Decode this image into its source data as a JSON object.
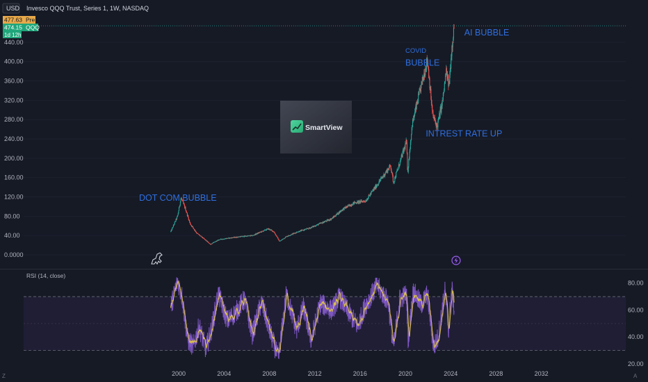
{
  "header": {
    "currency": "USD",
    "title": "Invesco QQQ Trust, Series 1, 1W, NASDAQ",
    "price_pre": "477.63",
    "pre_label": "Pre",
    "price_last": "474.15",
    "ticker": "QQQ",
    "countdown": "1d 12h"
  },
  "watermark": {
    "label": "SmartView"
  },
  "indicator": {
    "label": "RSI (14, close)"
  },
  "footer": {
    "left_icon_glyph": "Z",
    "right_icon_glyph": "A"
  },
  "colors": {
    "background": "#161a25",
    "up": "#26a69a",
    "down": "#ef5350",
    "rsi_line": "#7e57c2",
    "rsi_ma": "#d9c04a",
    "annotation": "#2f6fe0",
    "rsi_band": "#2a2344"
  },
  "chart_data": [
    {
      "type": "candlestick",
      "interval": "1W",
      "symbol": "QQQ",
      "ylim": [
        0,
        470
      ],
      "yticks": [
        "0.0000",
        "40.00",
        "80.00",
        "120.00",
        "160.00",
        "200.00",
        "240.00",
        "280.00",
        "320.00",
        "360.00",
        "400.00",
        "440.00"
      ],
      "xticks": [
        "2000",
        "2004",
        "2008",
        "2012",
        "2016",
        "2020",
        "2024",
        "2028",
        "2032"
      ],
      "series_points": [
        {
          "year": 1999.3,
          "close": 48
        },
        {
          "year": 1999.9,
          "close": 80
        },
        {
          "year": 2000.2,
          "close": 118
        },
        {
          "year": 2000.6,
          "close": 95
        },
        {
          "year": 2001.0,
          "close": 65
        },
        {
          "year": 2001.6,
          "close": 45
        },
        {
          "year": 2002.4,
          "close": 30
        },
        {
          "year": 2002.8,
          "close": 22
        },
        {
          "year": 2003.6,
          "close": 32
        },
        {
          "year": 2004.5,
          "close": 35
        },
        {
          "year": 2005.5,
          "close": 38
        },
        {
          "year": 2006.5,
          "close": 40
        },
        {
          "year": 2007.9,
          "close": 54
        },
        {
          "year": 2008.4,
          "close": 48
        },
        {
          "year": 2008.9,
          "close": 28
        },
        {
          "year": 2009.5,
          "close": 38
        },
        {
          "year": 2010.5,
          "close": 48
        },
        {
          "year": 2011.5,
          "close": 55
        },
        {
          "year": 2012.5,
          "close": 65
        },
        {
          "year": 2013.5,
          "close": 75
        },
        {
          "year": 2014.5,
          "close": 95
        },
        {
          "year": 2015.5,
          "close": 108
        },
        {
          "year": 2016.5,
          "close": 112
        },
        {
          "year": 2017.5,
          "close": 145
        },
        {
          "year": 2018.7,
          "close": 185
        },
        {
          "year": 2018.95,
          "close": 150
        },
        {
          "year": 2019.5,
          "close": 190
        },
        {
          "year": 2020.1,
          "close": 235
        },
        {
          "year": 2020.2,
          "close": 170
        },
        {
          "year": 2020.6,
          "close": 270
        },
        {
          "year": 2021.2,
          "close": 330
        },
        {
          "year": 2021.95,
          "close": 405
        },
        {
          "year": 2022.4,
          "close": 290
        },
        {
          "year": 2022.8,
          "close": 265
        },
        {
          "year": 2023.3,
          "close": 320
        },
        {
          "year": 2023.6,
          "close": 380
        },
        {
          "year": 2023.85,
          "close": 350
        },
        {
          "year": 2024.1,
          "close": 430
        },
        {
          "year": 2024.3,
          "close": 474.15
        }
      ],
      "annotations": [
        {
          "text": "DOT COM BUBBLE",
          "year": 1996.5,
          "value": 112
        },
        {
          "text": "COVID",
          "year": 2020.0,
          "value": 418,
          "size": "small"
        },
        {
          "text": "BUBBLE",
          "year": 2020.0,
          "value": 392
        },
        {
          "text": "INTREST RATE UP",
          "year": 2021.8,
          "value": 245
        },
        {
          "text": "AI BUBBLE",
          "year": 2025.2,
          "value": 454
        }
      ]
    },
    {
      "type": "line",
      "title": "RSI (14, close)",
      "ylim": [
        20,
        85
      ],
      "yticks": [
        "20.00",
        "40.00",
        "60.00",
        "80.00"
      ],
      "bands": [
        30,
        70
      ],
      "series_points": [
        {
          "year": 1999.3,
          "rsi": 62
        },
        {
          "year": 1999.9,
          "rsi": 82
        },
        {
          "year": 2000.3,
          "rsi": 70
        },
        {
          "year": 2000.8,
          "rsi": 38
        },
        {
          "year": 2001.3,
          "rsi": 33
        },
        {
          "year": 2001.8,
          "rsi": 48
        },
        {
          "year": 2002.4,
          "rsi": 31
        },
        {
          "year": 2002.9,
          "rsi": 46
        },
        {
          "year": 2003.5,
          "rsi": 72
        },
        {
          "year": 2004.3,
          "rsi": 52
        },
        {
          "year": 2005.0,
          "rsi": 58
        },
        {
          "year": 2005.8,
          "rsi": 68
        },
        {
          "year": 2006.5,
          "rsi": 42
        },
        {
          "year": 2007.3,
          "rsi": 66
        },
        {
          "year": 2008.2,
          "rsi": 40
        },
        {
          "year": 2008.8,
          "rsi": 24
        },
        {
          "year": 2009.5,
          "rsi": 72
        },
        {
          "year": 2010.4,
          "rsi": 45
        },
        {
          "year": 2011.0,
          "rsi": 62
        },
        {
          "year": 2011.7,
          "rsi": 38
        },
        {
          "year": 2012.5,
          "rsi": 65
        },
        {
          "year": 2013.5,
          "rsi": 60
        },
        {
          "year": 2014.2,
          "rsi": 70
        },
        {
          "year": 2015.0,
          "rsi": 58
        },
        {
          "year": 2015.8,
          "rsi": 48
        },
        {
          "year": 2016.5,
          "rsi": 64
        },
        {
          "year": 2017.5,
          "rsi": 78
        },
        {
          "year": 2018.5,
          "rsi": 66
        },
        {
          "year": 2018.95,
          "rsi": 32
        },
        {
          "year": 2019.5,
          "rsi": 68
        },
        {
          "year": 2020.1,
          "rsi": 72
        },
        {
          "year": 2020.25,
          "rsi": 38
        },
        {
          "year": 2020.7,
          "rsi": 74
        },
        {
          "year": 2021.4,
          "rsi": 64
        },
        {
          "year": 2021.95,
          "rsi": 72
        },
        {
          "year": 2022.5,
          "rsi": 32
        },
        {
          "year": 2022.9,
          "rsi": 40
        },
        {
          "year": 2023.5,
          "rsi": 74
        },
        {
          "year": 2023.8,
          "rsi": 45
        },
        {
          "year": 2024.1,
          "rsi": 76
        },
        {
          "year": 2024.3,
          "rsi": 62
        }
      ]
    }
  ]
}
